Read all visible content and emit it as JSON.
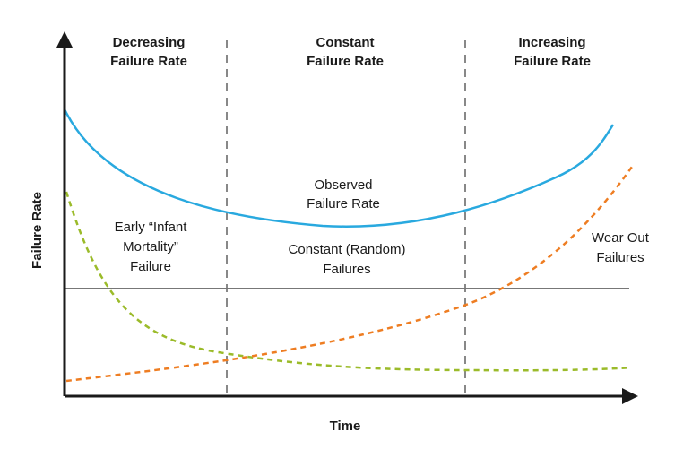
{
  "chart_data": {
    "type": "line",
    "xlabel": "Time",
    "ylabel": "Failure Rate",
    "regions": [
      {
        "line1": "Decreasing",
        "line2": "Failure Rate"
      },
      {
        "line1": "Constant",
        "line2": "Failure Rate"
      },
      {
        "line1": "Increasing",
        "line2": "Failure Rate"
      }
    ],
    "curve_labels": {
      "observed": {
        "line1": "Observed",
        "line2": "Failure Rate"
      },
      "infant": {
        "line1": "Early “Infant",
        "line2": "Mortality”",
        "line3": "Failure"
      },
      "constant": {
        "line1": "Constant (Random)",
        "line2": "Failures"
      },
      "wearout": {
        "line1": "Wear Out",
        "line2": "Failures"
      }
    },
    "colors": {
      "observed": "#29a9df",
      "infant": "#9bbb2a",
      "wearout": "#ee7d22",
      "constant": "#777777",
      "axes": "#1a1a1a",
      "dividers": "#888888"
    }
  }
}
